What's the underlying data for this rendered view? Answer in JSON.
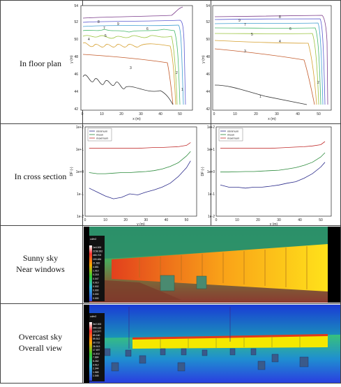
{
  "rows": {
    "floor_plan": "In floor plan",
    "cross_section": "In cross section",
    "sunny_line1": "Sunny sky",
    "sunny_line2": "Near windows",
    "overcast_line1": "Overcast sky",
    "overcast_line2": "Overall view"
  },
  "floor_plan_charts": {
    "xlabel": "x (m)",
    "ylabel": "y (m)",
    "xticks": [
      0,
      10,
      20,
      30,
      40,
      50
    ],
    "yticks": [
      42,
      44,
      46,
      48,
      50,
      52,
      54
    ],
    "left_contour_labels": [
      "8",
      "9",
      "7",
      "6",
      "5",
      "4",
      "3",
      "2",
      "1"
    ],
    "right_contour_labels": [
      "8",
      "9",
      "7",
      "6",
      "5",
      "4",
      "3",
      "2",
      "1"
    ]
  },
  "cross_section_charts": {
    "xlabel": "y (m)",
    "ylabel": "DF (-)",
    "xticks": [
      0,
      10,
      20,
      30,
      40,
      50
    ],
    "yticks": [
      "1e-2",
      "1e-1",
      "1e+0",
      "1e+1",
      "1e+2"
    ],
    "legend": [
      "minimum",
      "mean",
      "maximum"
    ]
  },
  "render_legends": {
    "sunny_unit": "cd/m2",
    "sunny_values": [
      "1e4.000",
      "2158.392",
      "465.702",
      "100.484",
      "21.682",
      "4.681",
      "1.010",
      "0.218",
      "0.047",
      "0.010",
      "0.002",
      "0.000",
      "0.000",
      "0.000"
    ],
    "overcast_unit": "cd/m2",
    "overcast_values": [
      "3e2.000",
      "200.122",
      "133.577",
      "89.160",
      "59.512",
      "39.722",
      "26.513",
      "17.697",
      "11.812",
      "7.884",
      "5.262",
      "3.512",
      "2.344",
      "1.565",
      "1.045"
    ]
  },
  "chart_data": [
    {
      "type": "line",
      "title": "",
      "xlabel": "y (m)",
      "ylabel": "DF (-)",
      "xlim": [
        0,
        55
      ],
      "ylim": [
        "1e-2",
        "1e+2"
      ],
      "log_y": true,
      "series": [
        {
          "name": "minimum",
          "x": [
            2,
            6,
            10,
            14,
            18,
            22,
            26,
            30,
            34,
            38,
            42,
            46,
            50,
            52
          ],
          "values": [
            0.18,
            0.12,
            0.08,
            0.06,
            0.07,
            0.1,
            0.09,
            0.12,
            0.15,
            0.2,
            0.3,
            0.6,
            1.5,
            3
          ]
        },
        {
          "name": "mean",
          "x": [
            2,
            6,
            10,
            14,
            18,
            22,
            26,
            30,
            34,
            38,
            42,
            46,
            50,
            52
          ],
          "values": [
            0.9,
            0.8,
            0.8,
            0.85,
            0.9,
            0.9,
            0.95,
            1.0,
            1.1,
            1.3,
            1.7,
            2.5,
            5,
            8
          ]
        },
        {
          "name": "maximum",
          "x": [
            2,
            6,
            10,
            14,
            18,
            22,
            26,
            30,
            34,
            38,
            42,
            46,
            50,
            52
          ],
          "values": [
            11,
            11,
            11,
            11,
            11,
            11,
            11,
            11.5,
            12,
            12,
            12.5,
            13,
            15,
            20
          ]
        }
      ]
    },
    {
      "type": "line",
      "title": "",
      "xlabel": "y (m)",
      "ylabel": "DF (-)",
      "xlim": [
        0,
        55
      ],
      "ylim": [
        "1e-2",
        "1e+2"
      ],
      "log_y": true,
      "series": [
        {
          "name": "minimum",
          "x": [
            2,
            6,
            10,
            14,
            18,
            22,
            26,
            30,
            34,
            38,
            42,
            46,
            50,
            52
          ],
          "values": [
            0.25,
            0.2,
            0.2,
            0.18,
            0.2,
            0.2,
            0.22,
            0.25,
            0.3,
            0.35,
            0.5,
            0.8,
            1.6,
            2.6
          ]
        },
        {
          "name": "mean",
          "x": [
            2,
            6,
            10,
            14,
            18,
            22,
            26,
            30,
            34,
            38,
            42,
            46,
            50,
            52
          ],
          "values": [
            0.95,
            0.95,
            0.97,
            1.0,
            1.0,
            1.05,
            1.1,
            1.15,
            1.3,
            1.5,
            1.9,
            2.6,
            4.5,
            7
          ]
        },
        {
          "name": "maximum",
          "x": [
            2,
            6,
            10,
            14,
            18,
            22,
            26,
            30,
            34,
            38,
            42,
            46,
            50,
            52
          ],
          "values": [
            11,
            11,
            11,
            11,
            11,
            11,
            11,
            11.5,
            12,
            12.5,
            13,
            14,
            16,
            22
          ]
        }
      ]
    }
  ]
}
